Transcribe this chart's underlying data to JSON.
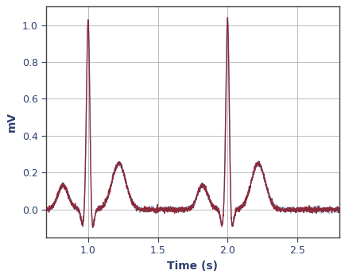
{
  "title": "",
  "xlabel": "Time (s)",
  "ylabel": "mV",
  "xlim": [
    0.7,
    2.8
  ],
  "ylim": [
    -0.15,
    1.1
  ],
  "yticks": [
    0.0,
    0.2,
    0.4,
    0.6,
    0.8,
    1.0
  ],
  "xticks": [
    1.0,
    1.5,
    2.0,
    2.5
  ],
  "color1": "#7fb3d3",
  "color2": "#8b1a2a",
  "alpha1": 0.9,
  "alpha2": 0.9,
  "linewidth": 1.0,
  "background": "#ffffff",
  "grid_color": "#bbbbbb",
  "xlabel_fontsize": 10,
  "ylabel_fontsize": 10,
  "tick_fontsize": 9,
  "tick_color": "#2c3e6e",
  "label_color": "#2c3e6e",
  "beat_times": [
    1.0,
    2.0
  ],
  "sample_rate": 1000
}
